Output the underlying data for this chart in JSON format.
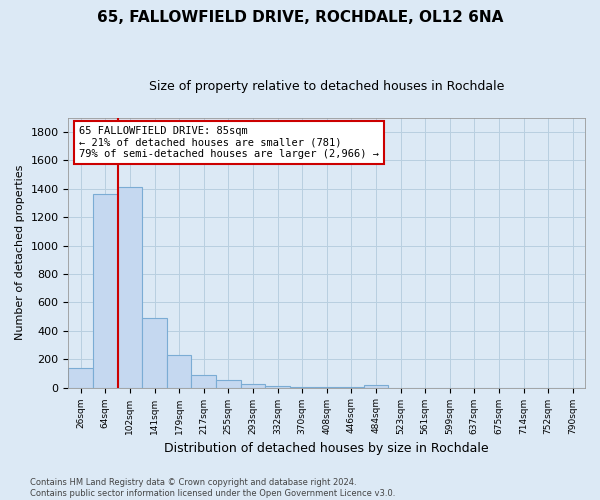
{
  "title": "65, FALLOWFIELD DRIVE, ROCHDALE, OL12 6NA",
  "subtitle": "Size of property relative to detached houses in Rochdale",
  "xlabel": "Distribution of detached houses by size in Rochdale",
  "ylabel": "Number of detached properties",
  "footer_line1": "Contains HM Land Registry data © Crown copyright and database right 2024.",
  "footer_line2": "Contains public sector information licensed under the Open Government Licence v3.0.",
  "bar_labels": [
    "26sqm",
    "64sqm",
    "102sqm",
    "141sqm",
    "179sqm",
    "217sqm",
    "255sqm",
    "293sqm",
    "332sqm",
    "370sqm",
    "408sqm",
    "446sqm",
    "484sqm",
    "523sqm",
    "561sqm",
    "599sqm",
    "637sqm",
    "675sqm",
    "714sqm",
    "752sqm",
    "790sqm"
  ],
  "bar_values": [
    140,
    1360,
    1410,
    490,
    230,
    85,
    50,
    25,
    10,
    5,
    3,
    2,
    20,
    0,
    0,
    0,
    0,
    0,
    0,
    0,
    0
  ],
  "bar_color": "#c5d8f0",
  "bar_edge_color": "#7bacd4",
  "ylim": [
    0,
    1900
  ],
  "yticks": [
    0,
    200,
    400,
    600,
    800,
    1000,
    1200,
    1400,
    1600,
    1800
  ],
  "red_line_color": "#cc0000",
  "red_line_x": 1.5,
  "annotation_line1": "65 FALLOWFIELD DRIVE: 85sqm",
  "annotation_line2": "← 21% of detached houses are smaller (781)",
  "annotation_line3": "79% of semi-detached houses are larger (2,966) →",
  "annotation_box_color": "#ffffff",
  "annotation_box_edge": "#cc0000",
  "background_color": "#dce9f5",
  "plot_bg_color": "#dce9f5",
  "grid_color": "#b8cfe0",
  "title_fontsize": 11,
  "subtitle_fontsize": 9
}
